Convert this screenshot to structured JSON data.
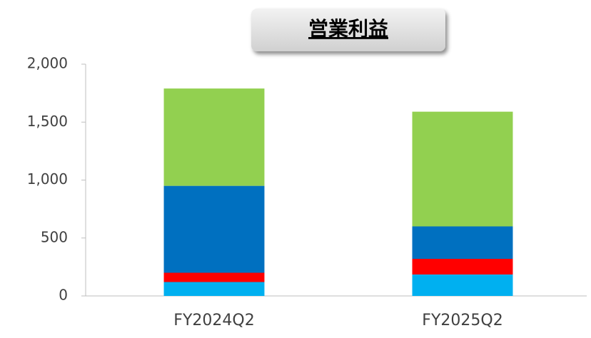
{
  "chart_data": {
    "type": "stacked_bar",
    "title": "営業利益",
    "categories": [
      "FY2024Q2",
      "FY2025Q2"
    ],
    "series": [
      {
        "color": "#00b0f0",
        "values": [
          120,
          185
        ]
      },
      {
        "color": "#ff0000",
        "values": [
          80,
          135
        ]
      },
      {
        "color": "#0070c0",
        "values": [
          750,
          280
        ]
      },
      {
        "color": "#92d050",
        "values": [
          840,
          990
        ]
      }
    ],
    "ylim": [
      0,
      2000
    ],
    "yticks": [
      0,
      500,
      {
        "value": 1000,
        "label": "1,000"
      },
      {
        "value": 1500,
        "label": "1,500"
      },
      {
        "value": 2000,
        "label": "2,000"
      }
    ]
  }
}
